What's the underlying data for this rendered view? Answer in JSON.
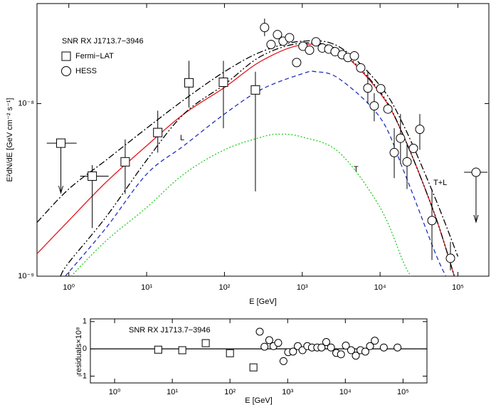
{
  "chart_data": [
    {
      "type": "scatter",
      "legend_title": "SNR RX J1713.7−3946",
      "xlabel": "E [GeV]",
      "ylabel": "E²dN/dE [GeV cm⁻² s⁻¹]",
      "xscale": "log",
      "yscale": "log",
      "xlim": [
        0.39,
        250000
      ],
      "ylim": [
        1e-09,
        3.8e-08
      ],
      "xticks": [
        {
          "value": 1,
          "label": "10⁰"
        },
        {
          "value": 10,
          "label": "10¹"
        },
        {
          "value": 100,
          "label": "10²"
        },
        {
          "value": 1000,
          "label": "10³"
        },
        {
          "value": 10000,
          "label": "10⁴"
        },
        {
          "value": 100000,
          "label": "10⁵"
        }
      ],
      "yticks": [
        {
          "value": 1e-09,
          "label": "10⁻⁹"
        },
        {
          "value": 1e-08,
          "label": "10⁻⁸"
        }
      ],
      "series": [
        {
          "name": "Fermi−LAT",
          "marker": "square",
          "color": "#000000",
          "x": [
            0.79,
            2.0,
            5.3,
            13.9,
            35,
            97,
            250
          ],
          "values": [
            5.9e-09,
            3.8e-09,
            4.6e-09,
            6.8e-09,
            1.32e-08,
            1.33e-08,
            1.2e-08
          ],
          "low": [
            null,
            1.9e-09,
            3e-09,
            5.2e-09,
            9.5e-09,
            7.2e-09,
            3.1e-09
          ],
          "high": [
            null,
            4.4e-09,
            6.2e-09,
            9.1e-09,
            1.77e-08,
            1.77e-08,
            1.53e-08
          ],
          "xlow": [
            0.52,
            1.4,
            null,
            null,
            null,
            null,
            null
          ],
          "xhigh": [
            1.26,
            3.25,
            null,
            null,
            null,
            null,
            null
          ],
          "upper_limit": [
            true,
            false,
            false,
            false,
            false,
            false,
            false
          ]
        },
        {
          "name": "HESS",
          "marker": "circle",
          "color": "#000000",
          "x": [
            328,
            397,
            480,
            568,
            686,
            847,
            1020,
            1240,
            1500,
            1810,
            2190,
            2640,
            3260,
            3860,
            4670,
            5640,
            6960,
            8410,
            10200,
            12600,
            15200,
            18300,
            22200,
            26800,
            32400,
            46400,
            80200,
            171000
          ],
          "values": [
            2.76e-08,
            2.2e-08,
            2.51e-08,
            2.3e-08,
            2.41e-08,
            1.73e-08,
            2.15e-08,
            2.04e-08,
            2.28e-08,
            2.1e-08,
            2.07e-08,
            2e-08,
            1.92e-08,
            1.85e-08,
            1.89e-08,
            1.61e-08,
            1.23e-08,
            9.7e-09,
            1.22e-08,
            9.3e-09,
            5.2e-09,
            6.3e-09,
            4.6e-09,
            5.5e-09,
            7.1e-09,
            2.1e-09,
            1.27e-09,
            4e-09
          ],
          "low": [
            2.46e-08,
            null,
            null,
            null,
            null,
            null,
            null,
            null,
            null,
            null,
            null,
            null,
            null,
            null,
            null,
            null,
            1e-08,
            7.9e-09,
            null,
            null,
            3.7e-09,
            4.5e-09,
            3.2e-09,
            null,
            5.4e-09,
            1.24e-09,
            1.08e-09,
            null
          ],
          "high": [
            3.11e-08,
            null,
            null,
            null,
            null,
            null,
            null,
            null,
            null,
            null,
            null,
            null,
            null,
            null,
            null,
            null,
            1.53e-08,
            1.15e-08,
            null,
            null,
            7.2e-09,
            8.7e-09,
            5.9e-09,
            null,
            8.7e-09,
            3.2e-09,
            1.58e-09,
            null
          ],
          "xlow": [
            null,
            null,
            null,
            null,
            null,
            null,
            null,
            null,
            null,
            null,
            null,
            null,
            null,
            null,
            null,
            null,
            null,
            null,
            null,
            null,
            null,
            null,
            null,
            null,
            null,
            null,
            null,
            120000
          ],
          "xhigh": [
            null,
            null,
            null,
            null,
            null,
            null,
            null,
            null,
            null,
            null,
            null,
            null,
            null,
            null,
            null,
            null,
            null,
            null,
            null,
            null,
            null,
            null,
            null,
            null,
            null,
            null,
            null,
            240000
          ],
          "upper_limit": [
            false,
            false,
            false,
            false,
            false,
            false,
            false,
            false,
            false,
            false,
            false,
            false,
            false,
            false,
            false,
            false,
            false,
            false,
            false,
            false,
            false,
            false,
            false,
            false,
            false,
            false,
            false,
            true
          ]
        }
      ],
      "models": [
        {
          "color": "#e8141c",
          "dash": "solid",
          "x": [
            0.39,
            1,
            3,
            10,
            30,
            100,
            300,
            1000,
            3000,
            10000,
            20000,
            50000,
            90000
          ],
          "values": [
            1.35e-09,
            2.1e-09,
            3.5e-09,
            5.7e-09,
            8.7e-09,
            1.24e-08,
            1.77e-08,
            2.19e-08,
            2e-08,
            1.15e-08,
            6.5e-09,
            2.3e-09,
            1e-09
          ]
        },
        {
          "color": "#2030c0",
          "dash": "dashed",
          "x": [
            0.9,
            3,
            10,
            30,
            100,
            300,
            1000,
            1500,
            3000,
            10000,
            20000,
            50000,
            70000
          ],
          "values": [
            1e-09,
            1.9e-09,
            3.9e-09,
            5.7e-09,
            8.7e-09,
            1.21e-08,
            1.49e-08,
            1.53e-08,
            1.39e-08,
            8.3e-09,
            4.1e-09,
            1.4e-09,
            1e-09
          ]
        },
        {
          "color": "#22cc22",
          "dash": "dotted",
          "x": [
            1.07,
            3,
            10,
            30,
            100,
            300,
            500,
            1000,
            3000,
            10000,
            20000,
            25000
          ],
          "values": [
            1e-09,
            1.6e-09,
            2.5e-09,
            3.9e-09,
            5.4e-09,
            6.4e-09,
            6.65e-09,
            6.4e-09,
            5.2e-09,
            2.5e-09,
            1.2e-09,
            1e-09
          ]
        },
        {
          "color": "#000000",
          "dash": "dashdot",
          "x": [
            0.39,
            1,
            3,
            10,
            30,
            100,
            300,
            1000,
            3000,
            10000,
            20000,
            50000,
            100000
          ],
          "values": [
            2.05e-09,
            3.2e-09,
            4.7e-09,
            7.2e-09,
            1.05e-08,
            1.53e-08,
            2e-08,
            2.3e-08,
            2.13e-08,
            1.27e-08,
            7.5e-09,
            2.9e-09,
            1.3e-09
          ]
        },
        {
          "color": "#000000",
          "dash": "dashdotdot",
          "x": [
            0.78,
            1,
            3,
            10,
            30,
            100,
            300,
            1000,
            3000,
            10000,
            20000,
            50000,
            90000
          ],
          "values": [
            1e-09,
            1.2e-09,
            2.2e-09,
            4.7e-09,
            8.7e-09,
            1.29e-08,
            1.89e-08,
            2.24e-08,
            2.03e-08,
            1.17e-08,
            6.5e-09,
            2.3e-09,
            1e-09
          ]
        }
      ],
      "annotations": [
        "L",
        "T",
        "T+L"
      ]
    },
    {
      "type": "scatter",
      "title": "SNR RX J1713.7−3946",
      "xlabel": "E [GeV]",
      "ylabel": "residuals×10⁸",
      "xscale": "log",
      "xlim": [
        0.38,
        260000
      ],
      "ylim": [
        -1.25,
        1.1
      ],
      "xticks": [
        {
          "value": 1,
          "label": "10⁰"
        },
        {
          "value": 10,
          "label": "10¹"
        },
        {
          "value": 100,
          "label": "10²"
        },
        {
          "value": 1000,
          "label": "10³"
        },
        {
          "value": 10000,
          "label": "10⁴"
        },
        {
          "value": 100000,
          "label": "10⁵"
        }
      ],
      "yticks": [
        {
          "value": -1,
          "label": "−1"
        },
        0,
        1
      ],
      "series": [
        {
          "marker": "square",
          "color": "#000000",
          "x": [
            5.7,
            14.9,
            38,
            100,
            255
          ],
          "values": [
            -0.03,
            -0.05,
            0.21,
            -0.16,
            -0.68
          ]
        },
        {
          "marker": "circle",
          "color": "#000000",
          "x": [
            328,
            397,
            480,
            568,
            686,
            847,
            1020,
            1240,
            1500,
            1810,
            2190,
            2640,
            3260,
            3860,
            4670,
            5640,
            6960,
            8410,
            10200,
            12600,
            15200,
            18300,
            22200,
            26800,
            32400,
            46400,
            80200
          ],
          "values": [
            0.63,
            0.08,
            0.32,
            0.1,
            0.22,
            -0.45,
            -0.12,
            -0.1,
            0.1,
            -0.05,
            0.1,
            0.05,
            0.05,
            0.05,
            0.25,
            0.05,
            -0.15,
            -0.2,
            0.12,
            -0.05,
            -0.25,
            -0.05,
            -0.1,
            0.1,
            0.3,
            0.05,
            0.05
          ]
        }
      ]
    }
  ]
}
